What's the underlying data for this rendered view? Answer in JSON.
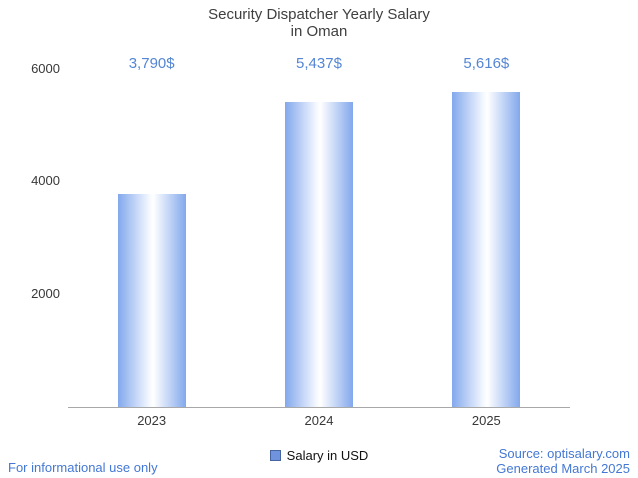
{
  "title": {
    "line1": "Security Dispatcher Yearly Salary",
    "line2": "in Oman"
  },
  "chart_data": {
    "type": "bar",
    "title": "Security Dispatcher Yearly Salary in Oman",
    "categories": [
      "2023",
      "2024",
      "2025"
    ],
    "values": [
      3790,
      5437,
      5616
    ],
    "value_labels": [
      "3,790$",
      "5,437$",
      "5,616$"
    ],
    "series": [
      {
        "name": "Salary in USD",
        "values": [
          3790,
          5437,
          5616
        ]
      }
    ],
    "xlabel": "",
    "ylabel": "",
    "ylim": [
      0,
      6000
    ],
    "yticks": [
      2000,
      4000,
      6000
    ],
    "grid": false,
    "legend_position": "bottom",
    "bar_gradient": [
      "#82a8ec",
      "#ffffff",
      "#82a8ec"
    ]
  },
  "legend": {
    "label": "Salary in USD",
    "swatch_color": "#7093de"
  },
  "footer": {
    "left": "For informational use only",
    "source": "Source: optisalary.com",
    "generated": "Generated March 2025"
  },
  "colors": {
    "accent_blue": "#5486d4",
    "link_blue": "#4478d4",
    "text": "#3f3f3f",
    "axis": "#a8a8a8"
  }
}
